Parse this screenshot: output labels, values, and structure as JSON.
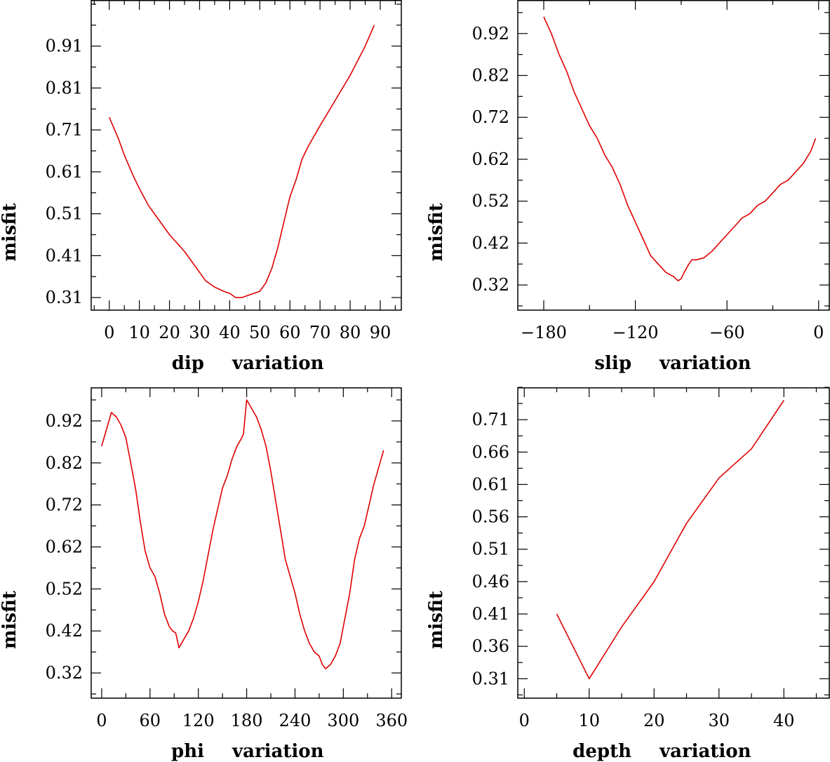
{
  "colors": {
    "curve": "#e00000",
    "axis": "#000000",
    "background": "#ffffff"
  },
  "chart_data": [
    {
      "type": "line",
      "title": "",
      "xlabel": "dip variation",
      "xlabel_parts": [
        "dip",
        "variation"
      ],
      "ylabel": "misfit",
      "xlim": [
        -6,
        97
      ],
      "ylim": [
        0.28,
        1.02
      ],
      "xticks": [
        0,
        10,
        20,
        30,
        40,
        50,
        60,
        70,
        80,
        90
      ],
      "xtick_labels": [
        "0",
        "10",
        "20",
        "30",
        "40",
        "50",
        "60",
        "70",
        "80",
        "90"
      ],
      "yticks": [
        0.31,
        0.41,
        0.51,
        0.61,
        0.71,
        0.81,
        0.91
      ],
      "ytick_labels": [
        "0.31",
        "0.41",
        "0.51",
        "0.61",
        "0.71",
        "0.81",
        "0.91"
      ],
      "series": [
        {
          "name": "misfit",
          "x": [
            0,
            3,
            5,
            8,
            10,
            13,
            16,
            20,
            25,
            30,
            32,
            35,
            38,
            40,
            42,
            44,
            46,
            48,
            50,
            52,
            54,
            56,
            58,
            60,
            62,
            64,
            66,
            70,
            75,
            80,
            85,
            88
          ],
          "y": [
            0.74,
            0.69,
            0.65,
            0.6,
            0.57,
            0.53,
            0.5,
            0.46,
            0.42,
            0.37,
            0.35,
            0.335,
            0.325,
            0.32,
            0.31,
            0.31,
            0.315,
            0.32,
            0.325,
            0.345,
            0.38,
            0.43,
            0.49,
            0.55,
            0.59,
            0.64,
            0.67,
            0.72,
            0.78,
            0.84,
            0.91,
            0.96
          ]
        }
      ]
    },
    {
      "type": "line",
      "title": "",
      "xlabel": "slip variation",
      "xlabel_parts": [
        "slip",
        "variation"
      ],
      "ylabel": "misfit",
      "xlim": [
        -197,
        7
      ],
      "ylim": [
        0.26,
        1.0
      ],
      "xticks": [
        -180,
        -120,
        -60,
        0
      ],
      "xtick_labels": [
        "−180",
        "−120",
        "−60",
        "0"
      ],
      "yticks": [
        0.32,
        0.42,
        0.52,
        0.62,
        0.72,
        0.82,
        0.92
      ],
      "ytick_labels": [
        "0.32",
        "0.42",
        "0.52",
        "0.62",
        "0.72",
        "0.82",
        "0.92"
      ],
      "series": [
        {
          "name": "misfit",
          "x": [
            -180,
            -175,
            -170,
            -165,
            -160,
            -155,
            -150,
            -145,
            -140,
            -135,
            -130,
            -125,
            -120,
            -115,
            -110,
            -105,
            -100,
            -95,
            -92,
            -90,
            -88,
            -85,
            -83,
            -80,
            -75,
            -70,
            -65,
            -60,
            -55,
            -50,
            -45,
            -40,
            -35,
            -30,
            -25,
            -20,
            -15,
            -10,
            -5,
            -2
          ],
          "y": [
            0.96,
            0.92,
            0.87,
            0.83,
            0.78,
            0.74,
            0.7,
            0.67,
            0.63,
            0.6,
            0.56,
            0.51,
            0.47,
            0.43,
            0.39,
            0.37,
            0.35,
            0.34,
            0.33,
            0.335,
            0.35,
            0.37,
            0.38,
            0.38,
            0.385,
            0.4,
            0.42,
            0.44,
            0.46,
            0.48,
            0.49,
            0.51,
            0.52,
            0.54,
            0.56,
            0.57,
            0.59,
            0.61,
            0.64,
            0.67
          ]
        }
      ]
    },
    {
      "type": "line",
      "title": "",
      "xlabel": "phi variation",
      "xlabel_parts": [
        "phi",
        "variation"
      ],
      "ylabel": "misfit",
      "xlim": [
        -13,
        372
      ],
      "ylim": [
        0.26,
        1.0
      ],
      "xticks": [
        0,
        60,
        120,
        180,
        240,
        300,
        360
      ],
      "xtick_labels": [
        "0",
        "60",
        "120",
        "180",
        "240",
        "300",
        "360"
      ],
      "yticks": [
        0.32,
        0.42,
        0.52,
        0.62,
        0.72,
        0.82,
        0.92
      ],
      "ytick_labels": [
        "0.32",
        "0.42",
        "0.52",
        "0.62",
        "0.72",
        "0.82",
        "0.92"
      ],
      "series": [
        {
          "name": "misfit",
          "x": [
            0,
            6,
            12,
            18,
            24,
            30,
            36,
            42,
            48,
            54,
            60,
            66,
            72,
            78,
            84,
            88,
            92,
            96,
            102,
            108,
            114,
            120,
            126,
            132,
            138,
            144,
            150,
            156,
            162,
            168,
            174,
            176,
            180,
            186,
            192,
            198,
            204,
            210,
            216,
            222,
            228,
            234,
            240,
            246,
            252,
            258,
            264,
            270,
            274,
            278,
            284,
            290,
            296,
            302,
            308,
            314,
            320,
            326,
            332,
            338,
            344,
            350
          ],
          "y": [
            0.86,
            0.9,
            0.94,
            0.93,
            0.91,
            0.88,
            0.82,
            0.76,
            0.68,
            0.61,
            0.57,
            0.55,
            0.51,
            0.46,
            0.43,
            0.42,
            0.415,
            0.38,
            0.4,
            0.42,
            0.45,
            0.49,
            0.54,
            0.6,
            0.66,
            0.71,
            0.76,
            0.79,
            0.83,
            0.86,
            0.88,
            0.89,
            0.97,
            0.95,
            0.93,
            0.9,
            0.86,
            0.8,
            0.73,
            0.66,
            0.59,
            0.55,
            0.51,
            0.46,
            0.42,
            0.39,
            0.37,
            0.36,
            0.34,
            0.33,
            0.34,
            0.36,
            0.39,
            0.45,
            0.51,
            0.59,
            0.64,
            0.67,
            0.72,
            0.77,
            0.81,
            0.85
          ]
        }
      ]
    },
    {
      "type": "line",
      "title": "",
      "xlabel": "depth variation",
      "xlabel_parts": [
        "depth",
        "variation"
      ],
      "ylabel": "misfit",
      "xlim": [
        -1,
        47
      ],
      "ylim": [
        0.28,
        0.76
      ],
      "xticks": [
        0,
        10,
        20,
        30,
        40
      ],
      "xtick_labels": [
        "0",
        "10",
        "20",
        "30",
        "40"
      ],
      "yticks": [
        0.31,
        0.36,
        0.41,
        0.46,
        0.51,
        0.56,
        0.61,
        0.66,
        0.71
      ],
      "ytick_labels": [
        "0.31",
        "0.36",
        "0.41",
        "0.46",
        "0.51",
        "0.56",
        "0.61",
        "0.66",
        "0.71"
      ],
      "series": [
        {
          "name": "misfit",
          "x": [
            5,
            10,
            15,
            20,
            25,
            30,
            35,
            40
          ],
          "y": [
            0.41,
            0.31,
            0.39,
            0.46,
            0.55,
            0.62,
            0.665,
            0.74
          ]
        }
      ]
    }
  ]
}
